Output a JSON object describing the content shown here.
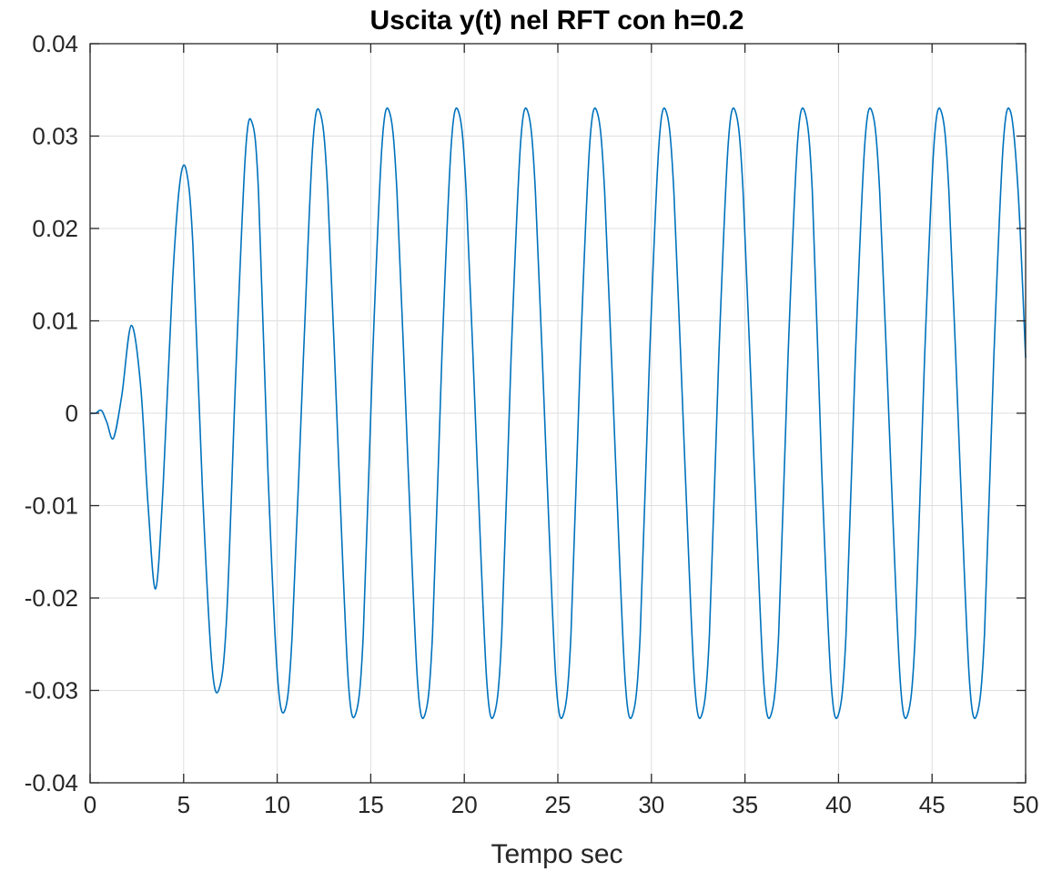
{
  "chart_data": {
    "type": "line",
    "title": "Uscita y(t) nel RFT con h=0.2",
    "xlabel": "Tempo sec",
    "ylabel": "",
    "xlim": [
      0,
      50
    ],
    "ylim": [
      -0.04,
      0.04
    ],
    "xticks": [
      0,
      5,
      10,
      15,
      20,
      25,
      30,
      35,
      40,
      45,
      50
    ],
    "xtick_labels": [
      "0",
      "5",
      "10",
      "15",
      "20",
      "25",
      "30",
      "35",
      "40",
      "45",
      "50"
    ],
    "yticks": [
      -0.04,
      -0.03,
      -0.02,
      -0.01,
      0,
      0.01,
      0.02,
      0.03,
      0.04
    ],
    "ytick_labels": [
      "-0.04",
      "-0.03",
      "-0.02",
      "-0.01",
      "0",
      "0.01",
      "0.02",
      "0.03",
      "0.04"
    ],
    "grid": true,
    "color": "#0072bd",
    "series": [
      {
        "x": [
          0,
          0.3,
          0.5,
          0.65,
          0.9,
          1.25,
          1.7,
          2.2,
          2.7,
          3.1,
          3.5,
          3.9,
          4.4,
          4.8,
          5.15,
          5.5,
          6.0,
          6.5,
          6.9,
          7.3,
          7.8,
          8.3,
          8.65,
          9.0,
          9.5,
          10.0,
          10.4,
          10.8,
          11.4,
          11.9,
          12.3,
          12.7,
          13.3,
          13.8,
          14.2,
          14.6,
          15.1,
          15.6,
          16.0,
          16.4,
          17.0,
          17.5,
          17.9,
          18.3,
          18.8,
          19.3,
          19.7,
          20.1,
          20.7,
          21.2,
          21.6,
          22.0,
          22.5,
          23.0,
          23.4,
          23.8,
          24.4,
          24.9,
          25.3,
          25.7,
          26.2,
          26.7,
          27.1,
          27.5,
          28.1,
          28.6,
          29.0,
          29.4,
          29.9,
          30.4,
          30.8,
          31.2,
          31.8,
          32.3,
          32.7,
          33.1,
          33.6,
          34.1,
          34.5,
          34.9,
          35.5,
          36.0,
          36.4,
          36.8,
          37.3,
          37.8,
          38.2,
          38.6,
          39.1,
          39.6,
          40.0,
          40.4,
          40.9,
          41.4,
          41.8,
          42.2,
          42.8,
          43.3,
          43.7,
          44.1,
          44.6,
          45.1,
          45.5,
          45.9,
          46.5,
          47.0,
          47.4,
          47.8,
          48.3,
          48.8,
          49.2,
          49.6,
          50.0
        ],
        "y": [
          0,
          0,
          0.0003,
          0.0002,
          -0.001,
          -0.0027,
          0.002,
          0.0095,
          0.003,
          -0.01,
          -0.019,
          -0.008,
          0.014,
          0.025,
          0.0262,
          0.018,
          -0.008,
          -0.027,
          -0.0298,
          -0.022,
          0.005,
          0.028,
          0.0315,
          0.024,
          -0.006,
          -0.028,
          -0.0322,
          -0.024,
          0.006,
          0.029,
          0.0325,
          0.024,
          -0.006,
          -0.029,
          -0.0325,
          -0.024,
          0.006,
          0.029,
          0.0326,
          0.024,
          -0.006,
          -0.029,
          -0.0326,
          -0.024,
          0.006,
          0.029,
          0.0326,
          0.024,
          -0.006,
          -0.029,
          -0.0326,
          -0.024,
          0.006,
          0.029,
          0.0326,
          0.024,
          -0.006,
          -0.029,
          -0.0326,
          -0.024,
          0.006,
          0.029,
          0.0326,
          0.024,
          -0.006,
          -0.029,
          -0.0326,
          -0.024,
          0.006,
          0.029,
          0.0326,
          0.024,
          -0.006,
          -0.029,
          -0.0326,
          -0.024,
          0.006,
          0.029,
          0.0326,
          0.024,
          -0.006,
          -0.029,
          -0.0326,
          -0.024,
          0.006,
          0.029,
          0.0326,
          0.024,
          -0.006,
          -0.029,
          -0.0326,
          -0.024,
          0.006,
          0.029,
          0.0326,
          0.024,
          -0.006,
          -0.029,
          -0.0326,
          -0.024,
          0.006,
          0.029,
          0.0326,
          0.024,
          -0.006,
          -0.029,
          -0.0326,
          -0.024,
          0.006,
          0.029,
          0.0326,
          0.024,
          0.006
        ]
      }
    ]
  }
}
